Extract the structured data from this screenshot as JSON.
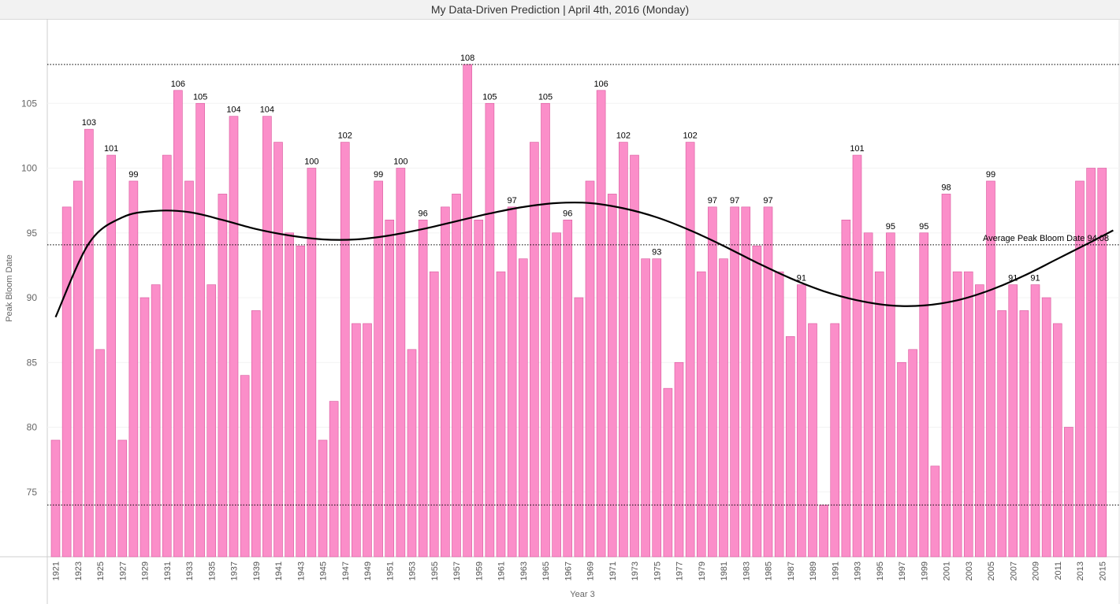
{
  "header": {
    "title": "My Data-Driven Prediction | April 4th, 2016 (Monday)"
  },
  "chart_data": {
    "type": "bar",
    "title": "My Data-Driven Prediction | April 4th, 2016 (Monday)",
    "xlabel": "Year 3",
    "ylabel": "Peak Bloom Date",
    "ylim": [
      70,
      110
    ],
    "yticks": [
      75,
      80,
      85,
      90,
      95,
      100,
      105
    ],
    "years": [
      1921,
      1922,
      1923,
      1924,
      1925,
      1926,
      1927,
      1928,
      1929,
      1930,
      1931,
      1932,
      1933,
      1934,
      1935,
      1936,
      1937,
      1938,
      1939,
      1940,
      1941,
      1942,
      1943,
      1944,
      1945,
      1946,
      1947,
      1948,
      1949,
      1950,
      1951,
      1952,
      1953,
      1954,
      1955,
      1956,
      1957,
      1958,
      1959,
      1960,
      1961,
      1962,
      1963,
      1964,
      1965,
      1966,
      1967,
      1968,
      1969,
      1970,
      1971,
      1972,
      1973,
      1974,
      1975,
      1976,
      1977,
      1978,
      1979,
      1980,
      1981,
      1982,
      1983,
      1984,
      1985,
      1986,
      1987,
      1988,
      1989,
      1990,
      1991,
      1992,
      1993,
      1994,
      1995,
      1996,
      1997,
      1998,
      1999,
      2000,
      2001,
      2002,
      2003,
      2004,
      2005,
      2006,
      2007,
      2008,
      2009,
      2010,
      2011,
      2012,
      2013,
      2014,
      2015
    ],
    "values": [
      79,
      97,
      99,
      103,
      86,
      101,
      79,
      99,
      90,
      91,
      101,
      106,
      99,
      105,
      91,
      98,
      104,
      84,
      89,
      104,
      102,
      95,
      94,
      100,
      79,
      82,
      102,
      88,
      88,
      99,
      96,
      100,
      86,
      96,
      92,
      97,
      98,
      108,
      96,
      105,
      92,
      97,
      93,
      102,
      105,
      95,
      96,
      90,
      99,
      106,
      98,
      102,
      101,
      93,
      93,
      83,
      85,
      102,
      92,
      97,
      93,
      97,
      97,
      94,
      97,
      92,
      87,
      91,
      88,
      74,
      88,
      96,
      101,
      95,
      92,
      95,
      85,
      86,
      95,
      77,
      98,
      92,
      92,
      91,
      99,
      89,
      91,
      89,
      91,
      90,
      88,
      80,
      99,
      100,
      100
    ],
    "data_labels": [
      {
        "year": 1924,
        "value": 103
      },
      {
        "year": 1926,
        "value": 101
      },
      {
        "year": 1928,
        "value": 99
      },
      {
        "year": 1932,
        "value": 106
      },
      {
        "year": 1934,
        "value": 105
      },
      {
        "year": 1937,
        "value": 104
      },
      {
        "year": 1940,
        "value": 104
      },
      {
        "year": 1944,
        "value": 100
      },
      {
        "year": 1947,
        "value": 102
      },
      {
        "year": 1950,
        "value": 99
      },
      {
        "year": 1952,
        "value": 100
      },
      {
        "year": 1954,
        "value": 96
      },
      {
        "year": 1958,
        "value": 108
      },
      {
        "year": 1960,
        "value": 105
      },
      {
        "year": 1962,
        "value": 97
      },
      {
        "year": 1965,
        "value": 105
      },
      {
        "year": 1967,
        "value": 96
      },
      {
        "year": 1970,
        "value": 106
      },
      {
        "year": 1972,
        "value": 102
      },
      {
        "year": 1975,
        "value": 93
      },
      {
        "year": 1978,
        "value": 102
      },
      {
        "year": 1980,
        "value": 97
      },
      {
        "year": 1982,
        "value": 97
      },
      {
        "year": 1985,
        "value": 97
      },
      {
        "year": 1988,
        "value": 91
      },
      {
        "year": 1993,
        "value": 101
      },
      {
        "year": 1996,
        "value": 95
      },
      {
        "year": 1999,
        "value": 95
      },
      {
        "year": 2001,
        "value": 98
      },
      {
        "year": 2005,
        "value": 99
      },
      {
        "year": 2007,
        "value": 91
      },
      {
        "year": 2009,
        "value": 91
      }
    ],
    "reference_lines": [
      {
        "value": 108,
        "style": "dotted"
      },
      {
        "value": 94.08,
        "style": "dotted",
        "label": "Average Peak Bloom Date 94.08"
      },
      {
        "value": 74,
        "style": "dotted"
      }
    ],
    "trend_line": {
      "type": "polynomial",
      "points": [
        {
          "x": 1921,
          "y": 88.5
        },
        {
          "x": 1924,
          "y": 94.2
        },
        {
          "x": 1927,
          "y": 96.2
        },
        {
          "x": 1930,
          "y": 96.7
        },
        {
          "x": 1933,
          "y": 96.6
        },
        {
          "x": 1936,
          "y": 96.0
        },
        {
          "x": 1939,
          "y": 95.3
        },
        {
          "x": 1942,
          "y": 94.8
        },
        {
          "x": 1945,
          "y": 94.5
        },
        {
          "x": 1948,
          "y": 94.5
        },
        {
          "x": 1951,
          "y": 94.8
        },
        {
          "x": 1954,
          "y": 95.3
        },
        {
          "x": 1957,
          "y": 95.9
        },
        {
          "x": 1960,
          "y": 96.5
        },
        {
          "x": 1963,
          "y": 97.0
        },
        {
          "x": 1966,
          "y": 97.3
        },
        {
          "x": 1969,
          "y": 97.3
        },
        {
          "x": 1972,
          "y": 96.9
        },
        {
          "x": 1975,
          "y": 96.2
        },
        {
          "x": 1978,
          "y": 95.2
        },
        {
          "x": 1981,
          "y": 94.0
        },
        {
          "x": 1984,
          "y": 92.7
        },
        {
          "x": 1987,
          "y": 91.5
        },
        {
          "x": 1990,
          "y": 90.5
        },
        {
          "x": 1993,
          "y": 89.8
        },
        {
          "x": 1996,
          "y": 89.4
        },
        {
          "x": 1999,
          "y": 89.4
        },
        {
          "x": 2002,
          "y": 89.8
        },
        {
          "x": 2005,
          "y": 90.6
        },
        {
          "x": 2008,
          "y": 91.7
        },
        {
          "x": 2011,
          "y": 93.0
        },
        {
          "x": 2014,
          "y": 94.3
        },
        {
          "x": 2016,
          "y": 95.2
        }
      ]
    },
    "grid": false,
    "bar_color": "#fb8ec9",
    "bar_edge_color": "#d9569c",
    "trend_color": "#000000"
  }
}
